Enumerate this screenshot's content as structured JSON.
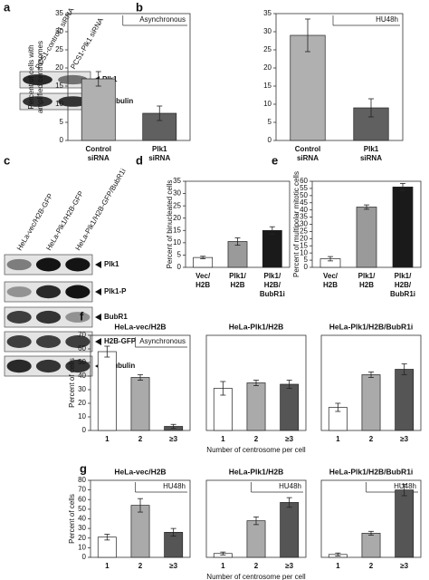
{
  "blots": [
    {
      "panel": "a",
      "lanes": [
        "PCS1-control I siRNA",
        "PCS1-Plk1 siRNA"
      ],
      "rows": [
        "Plk1",
        "α-tubulin"
      ]
    },
    {
      "panel": "c",
      "lanes": [
        "HeLa-vec/H2B-GFP",
        "HeLa-Plk1/H2B-GFP",
        "HeLa-Plk1/H2B-GFP/BubR1i"
      ],
      "rows": [
        "Plk1",
        "Plk1-P",
        "BubR1",
        "H2B-GFP",
        "α-tubulin"
      ]
    }
  ],
  "chart_data": [
    {
      "type": "bar",
      "panel": "b",
      "ylabel": [
        "Percent of cells with",
        "amplified centrosomes"
      ],
      "annotation": "Asynchronous",
      "categories": [
        [
          "Control",
          "siRNA"
        ],
        [
          "Plk1",
          "siRNA"
        ]
      ],
      "values": [
        17,
        7.5
      ],
      "errors": [
        2,
        2
      ],
      "colors": [
        "#b0b0b0",
        "#606060"
      ],
      "ylim": [
        0,
        35
      ],
      "yticks": [
        0,
        5,
        10,
        15,
        20,
        25,
        30,
        35
      ]
    },
    {
      "type": "bar",
      "annotation": "HU48h",
      "categories": [
        [
          "Control",
          "siRNA"
        ],
        [
          "Plk1",
          "siRNA"
        ]
      ],
      "values": [
        29,
        9
      ],
      "errors": [
        4.5,
        2.5
      ],
      "colors": [
        "#b0b0b0",
        "#606060"
      ],
      "ylim": [
        0,
        35
      ],
      "yticks": [
        0,
        5,
        10,
        15,
        20,
        25,
        30,
        35
      ]
    },
    {
      "type": "bar",
      "panel": "d",
      "ylabel": [
        "Percent of binucleated cells"
      ],
      "categories": [
        [
          "Vec/",
          "H2B"
        ],
        [
          "Plk1/",
          "H2B"
        ],
        [
          "Plk1/",
          "H2B/",
          "BubR1i"
        ]
      ],
      "values": [
        4,
        10.5,
        15
      ],
      "errors": [
        0.5,
        1.5,
        1.5
      ],
      "colors": [
        "#ffffff",
        "#9a9a9a",
        "#1a1a1a"
      ],
      "ylim": [
        0,
        35
      ],
      "yticks": [
        0,
        5,
        10,
        15,
        20,
        25,
        30,
        35
      ]
    },
    {
      "type": "bar",
      "panel": "e",
      "ylabel": [
        "Percent of multipolar mitotic cells"
      ],
      "categories": [
        [
          "Vec/",
          "H2B"
        ],
        [
          "Plk1/",
          "H2B"
        ],
        [
          "Plk1/",
          "H2B/",
          "BubR1i"
        ]
      ],
      "values": [
        6,
        42,
        56
      ],
      "errors": [
        1.5,
        1.5,
        2.5
      ],
      "colors": [
        "#ffffff",
        "#9a9a9a",
        "#1a1a1a"
      ],
      "ylim": [
        0,
        60
      ],
      "yticks": [
        0,
        5,
        10,
        15,
        20,
        25,
        30,
        35,
        40,
        45,
        50,
        55,
        60
      ]
    },
    {
      "type": "bar",
      "panel": "f",
      "title": "HeLa-vec/H2B",
      "ylabel": [
        "Percent of cells"
      ],
      "annotation": "Asynchronous",
      "categories": [
        [
          "1"
        ],
        [
          "2"
        ],
        [
          "≥3"
        ]
      ],
      "values": [
        58,
        39,
        3
      ],
      "errors": [
        4,
        2,
        1.5
      ],
      "colors": [
        "#ffffff",
        "#aaaaaa",
        "#555555"
      ],
      "ylim": [
        0,
        70
      ],
      "yticks": [
        0,
        10,
        20,
        30,
        40,
        50,
        60,
        70
      ]
    },
    {
      "type": "bar",
      "title": "HeLa-Plk1/H2B",
      "xlabel": "Number of centrosome per cell",
      "categories": [
        [
          "1"
        ],
        [
          "2"
        ],
        [
          "≥3"
        ]
      ],
      "values": [
        31,
        35,
        34
      ],
      "errors": [
        5,
        2,
        3
      ],
      "colors": [
        "#ffffff",
        "#aaaaaa",
        "#555555"
      ],
      "ylim": [
        0,
        70
      ]
    },
    {
      "type": "bar",
      "title": "HeLa-Plk1/H2B/BubR1i",
      "categories": [
        [
          "1"
        ],
        [
          "2"
        ],
        [
          "≥3"
        ]
      ],
      "values": [
        17,
        41,
        45
      ],
      "errors": [
        3,
        2,
        4
      ],
      "colors": [
        "#ffffff",
        "#aaaaaa",
        "#555555"
      ],
      "ylim": [
        0,
        70
      ]
    },
    {
      "type": "bar",
      "panel": "g",
      "title": "HeLa-vec/H2B",
      "ylabel": [
        "Percent of cells"
      ],
      "annotation": "HU48h",
      "categories": [
        [
          "1"
        ],
        [
          "2"
        ],
        [
          "≥3"
        ]
      ],
      "values": [
        21,
        54,
        26
      ],
      "errors": [
        3,
        7,
        4
      ],
      "colors": [
        "#ffffff",
        "#aaaaaa",
        "#555555"
      ],
      "ylim": [
        0,
        80
      ],
      "yticks": [
        0,
        10,
        20,
        30,
        40,
        50,
        60,
        70,
        80
      ]
    },
    {
      "type": "bar",
      "title": "HeLa-Plk1/H2B",
      "xlabel": "Number of centrosome per cell",
      "annotation": "HU48h",
      "categories": [
        [
          "1"
        ],
        [
          "2"
        ],
        [
          "≥3"
        ]
      ],
      "values": [
        4,
        38,
        57
      ],
      "errors": [
        1.5,
        4,
        5
      ],
      "colors": [
        "#ffffff",
        "#aaaaaa",
        "#555555"
      ],
      "ylim": [
        0,
        80
      ]
    },
    {
      "type": "bar",
      "title": "HeLa-Plk1/H2B/BubR1i",
      "annotation": "HU48h",
      "categories": [
        [
          "1"
        ],
        [
          "2"
        ],
        [
          "≥3"
        ]
      ],
      "values": [
        3,
        25,
        70
      ],
      "errors": [
        1.5,
        2,
        6
      ],
      "colors": [
        "#ffffff",
        "#aaaaaa",
        "#555555"
      ],
      "ylim": [
        0,
        80
      ]
    }
  ]
}
